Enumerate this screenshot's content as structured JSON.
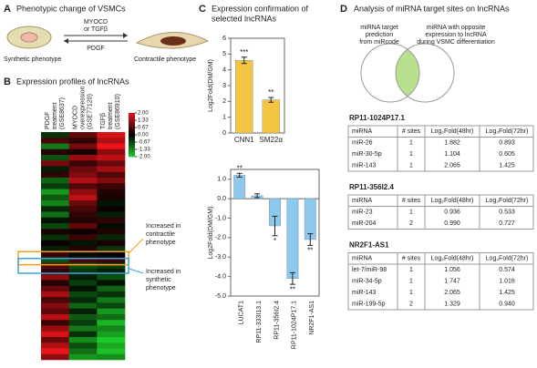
{
  "panels": {
    "A": {
      "label": "A",
      "title": "Phenotypic change of VSMCs",
      "forward": [
        "MYOCD",
        "or TGFβ"
      ],
      "back": "PDGF",
      "left_cell": "Synthetic phenotype",
      "right_cell": "Contractile phenotype"
    },
    "B": {
      "label": "B",
      "title": "Expression profiles of lncRNAs",
      "columns": [
        [
          "PDGF",
          "treatment",
          "(GSE8637)"
        ],
        [
          "MYOCD",
          "overexpression",
          "(GSE77120)"
        ],
        [
          "TGFβ",
          "treatment",
          "(GSE86910)"
        ]
      ],
      "scale": [
        {
          "value": 2,
          "label": "2.00"
        },
        {
          "value": 1.33,
          "label": "1.33"
        },
        {
          "value": 0.67,
          "label": "0.67"
        },
        {
          "value": 0,
          "label": "0.00"
        },
        {
          "value": -0.67,
          "label": "-0.67"
        },
        {
          "value": -1.33,
          "label": "-1.33"
        },
        {
          "value": -2,
          "label": "-2.00"
        }
      ],
      "rows": [
        [
          -0.5,
          0.8,
          1.8
        ],
        [
          0.6,
          0.4,
          1.5
        ],
        [
          -1.2,
          1.0,
          2.0
        ],
        [
          0.3,
          0.2,
          1.2
        ],
        [
          -0.8,
          1.3,
          1.6
        ],
        [
          1.0,
          0.5,
          0.9
        ],
        [
          -0.3,
          0.9,
          1.4
        ],
        [
          0.4,
          1.1,
          0.7
        ],
        [
          -1.0,
          1.5,
          1.1
        ],
        [
          -0.6,
          0.7,
          0.5
        ],
        [
          -1.5,
          1.2,
          0.3
        ],
        [
          -0.9,
          1.6,
          0.2
        ],
        [
          -1.3,
          0.9,
          -0.2
        ],
        [
          -0.4,
          0.6,
          0.1
        ],
        [
          -1.1,
          0.4,
          -0.3
        ],
        [
          -0.2,
          0.3,
          0.4
        ],
        [
          -0.7,
          0.8,
          -0.1
        ],
        [
          0.2,
          0.1,
          0.3
        ],
        [
          -0.5,
          0.5,
          -0.4
        ],
        [
          0.1,
          -0.2,
          0.2
        ],
        [
          -0.3,
          0.3,
          -0.5
        ],
        [
          0.5,
          -0.1,
          0.0
        ],
        [
          -0.8,
          0.6,
          0.5
        ],
        [
          0.7,
          -0.8,
          -0.6
        ],
        [
          0.4,
          -0.5,
          -0.3
        ],
        [
          1.2,
          -0.3,
          -0.8
        ],
        [
          0.3,
          -0.6,
          -0.2
        ],
        [
          0.9,
          -0.2,
          -1.0
        ],
        [
          1.4,
          -0.7,
          -0.5
        ],
        [
          0.6,
          -0.4,
          -1.2
        ],
        [
          1.1,
          -1.0,
          -0.7
        ],
        [
          0.8,
          -0.3,
          -1.5
        ],
        [
          1.6,
          -0.9,
          -1.1
        ],
        [
          0.5,
          -0.6,
          -1.8
        ],
        [
          1.3,
          -1.2,
          -1.3
        ],
        [
          1.8,
          -0.5,
          -1.6
        ],
        [
          0.9,
          -1.4,
          -2.0
        ],
        [
          1.5,
          -0.8,
          -1.7
        ],
        [
          2.0,
          -1.1,
          -1.9
        ],
        [
          1.2,
          -1.5,
          -1.4
        ]
      ],
      "contractile_note": [
        "Increased in",
        "contractile",
        "phenotype"
      ],
      "synthetic_note": [
        "Increased in",
        "synthetic",
        "phenotype"
      ]
    },
    "C": {
      "label": "C",
      "title": [
        "Expression confirmation of",
        "selected lncRNAs"
      ]
    },
    "D": {
      "label": "D",
      "title": "Analysis of miRNA target sites on lncRNAs",
      "venn_left": [
        "miRNA target",
        "prediction",
        "from miRcode"
      ],
      "venn_right": [
        "miRNA with opposite",
        "expression to lncRNA",
        "during VSMC differentiation"
      ],
      "tables": [
        {
          "name": "RP11-1024P17.1",
          "header": [
            "miRNA",
            "# sites",
            "Log₂Fold(48hr)",
            "Log₂Fold(72hr)"
          ],
          "rows": [
            [
              "miR-26",
              "1",
              "1.882",
              "0.893"
            ],
            [
              "miR-30-5p",
              "1",
              "1.104",
              "0.605"
            ],
            [
              "miR-143",
              "1",
              "2.065",
              "1.425"
            ]
          ]
        },
        {
          "name": "RP11-356I2.4",
          "header": [
            "miRNA",
            "# sites",
            "Log₂Fold(48hr)",
            "Log₂Fold(72hr)"
          ],
          "rows": [
            [
              "miR-23",
              "1",
              "0.936",
              "0.533"
            ],
            [
              "miR-204",
              "2",
              "0.990",
              "0.727"
            ]
          ]
        },
        {
          "name": "NR2F1-AS1",
          "header": [
            "miRNA",
            "# sites",
            "Log₂Fold(48hr)",
            "Log₂Fold(72hr)"
          ],
          "rows": [
            [
              "let-7/miR-98",
              "1",
              "1.056",
              "0.574"
            ],
            [
              "miR-34-5p",
              "1",
              "1.747",
              "1.016"
            ],
            [
              "miR-143",
              "1",
              "2.065",
              "1.425"
            ],
            [
              "miR-199-5p",
              "2",
              "1.329",
              "0.940"
            ]
          ]
        }
      ]
    }
  },
  "chart_data": [
    {
      "type": "bar",
      "y_label": "Log2Fold(DM/GM)",
      "categories": [
        "CNN1",
        "SM22α"
      ],
      "values": [
        4.6,
        2.1
      ],
      "errors": [
        0.2,
        0.15
      ],
      "significance": [
        "***",
        "**"
      ],
      "color": "#f4c443",
      "ylim": [
        0,
        6
      ],
      "yticks": [
        0,
        1,
        2,
        3,
        4,
        5,
        6
      ]
    },
    {
      "type": "bar",
      "y_label": "Log2Fold(DM/GM)",
      "categories": [
        "LUCAT1",
        "RP11-333I13.1",
        "RP11-356I2.4",
        "RP11-1024P17.1",
        "NR2F1-AS1"
      ],
      "values": [
        1.2,
        0.15,
        -1.4,
        -4.1,
        -2.1
      ],
      "errors": [
        0.1,
        0.1,
        0.5,
        0.3,
        0.3
      ],
      "significance": [
        "**",
        null,
        "*",
        "**",
        "**"
      ],
      "color": "#8ec8ec",
      "ylim": [
        -5,
        1.5
      ],
      "yticks": [
        {
          "value": 1,
          "label": "1.0"
        },
        {
          "value": 0,
          "label": "0.0"
        },
        {
          "value": -1,
          "label": "-1.0"
        },
        {
          "value": -2,
          "label": "-2.0"
        },
        {
          "value": -3,
          "label": "-3.0"
        },
        {
          "value": -4,
          "label": "-4.0"
        },
        {
          "value": -5,
          "label": "-5.0"
        }
      ]
    }
  ]
}
